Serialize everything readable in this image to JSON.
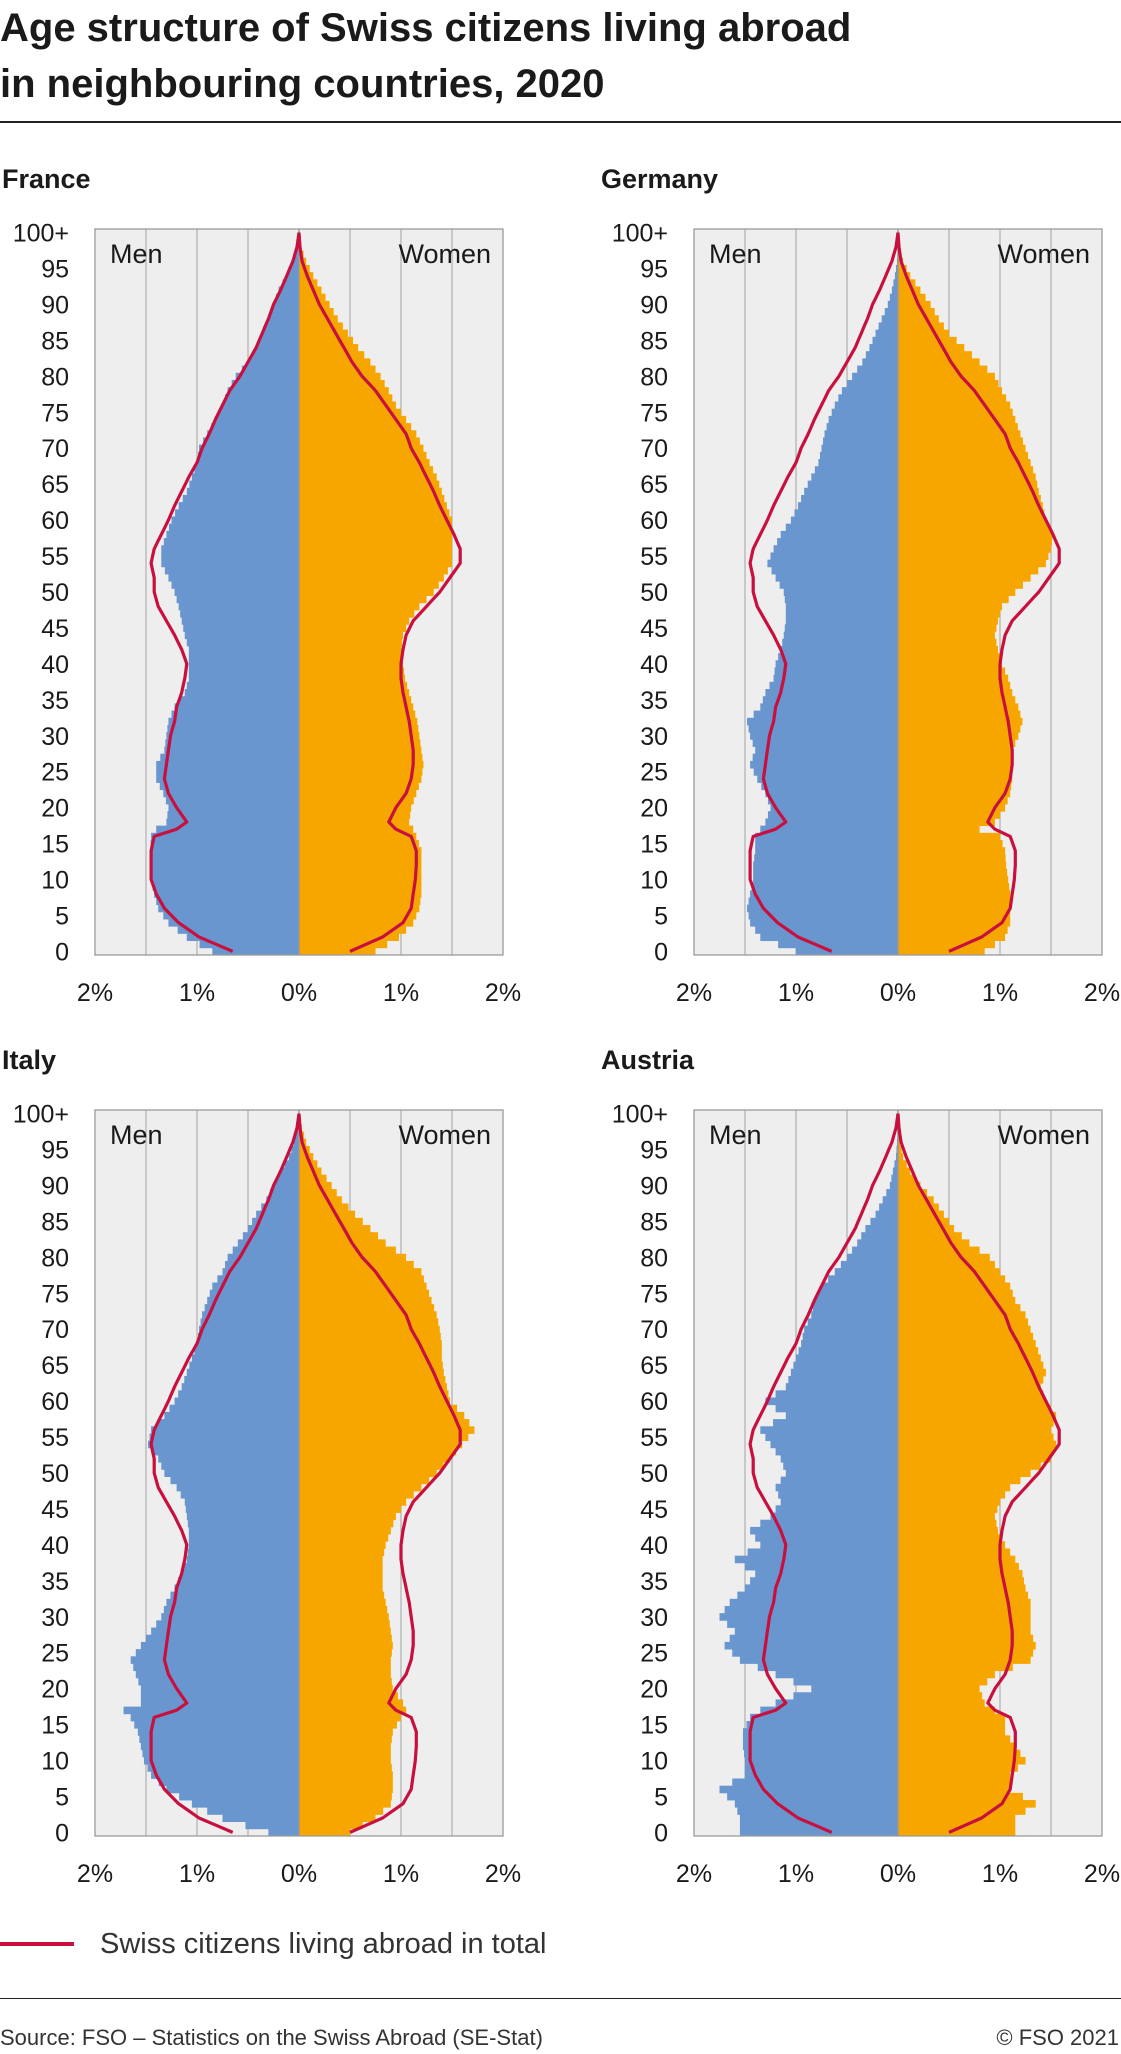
{
  "title": {
    "line1": "Age structure of Swiss citizens living abroad",
    "line2": "in neighbouring countries, 2020"
  },
  "colors": {
    "men": "#6a96cf",
    "women": "#f7a600",
    "total": "#c8103e",
    "plot_bg": "#eeeeee",
    "grid": "#b4b4b4"
  },
  "labels": {
    "men": "Men",
    "women": "Women"
  },
  "legend": {
    "total_label": "Swiss citizens living abroad in total"
  },
  "footer": {
    "source": "Source: FSO – Statistics on the Swiss Abroad (SE-Stat)",
    "copyright": "© FSO 2021"
  },
  "chart_data": [
    {
      "type": "bar",
      "orientation": "horizontal-population-pyramid",
      "panel_title": "France",
      "y_ticks": [
        "0",
        "5",
        "10",
        "15",
        "20",
        "25",
        "30",
        "35",
        "40",
        "45",
        "50",
        "55",
        "60",
        "65",
        "70",
        "75",
        "80",
        "85",
        "90",
        "95",
        "100+"
      ],
      "x_ticks": [
        "2%",
        "1%",
        "0%",
        "1%",
        "2%"
      ],
      "xlim_percent": [
        -2,
        2
      ],
      "age_keypoints": [
        0,
        2,
        4,
        6,
        8,
        10,
        12,
        14,
        16,
        17,
        18,
        20,
        22,
        24,
        26,
        28,
        30,
        32,
        34,
        36,
        38,
        40,
        42,
        44,
        46,
        48,
        50,
        52,
        54,
        56,
        58,
        60,
        62,
        64,
        66,
        68,
        70,
        72,
        74,
        76,
        78,
        80,
        82,
        84,
        86,
        88,
        90,
        92,
        94,
        96,
        98,
        100
      ],
      "men_percent": [
        0.85,
        1.1,
        1.28,
        1.38,
        1.42,
        1.45,
        1.46,
        1.46,
        1.45,
        1.4,
        1.3,
        1.28,
        1.33,
        1.4,
        1.4,
        1.32,
        1.3,
        1.28,
        1.22,
        1.12,
        1.08,
        1.08,
        1.08,
        1.12,
        1.15,
        1.18,
        1.22,
        1.28,
        1.35,
        1.35,
        1.3,
        1.25,
        1.18,
        1.1,
        1.05,
        1.0,
        0.98,
        0.9,
        0.82,
        0.75,
        0.7,
        0.62,
        0.5,
        0.42,
        0.36,
        0.3,
        0.25,
        0.2,
        0.12,
        0.06,
        0.02,
        0.0
      ],
      "women_percent": [
        0.75,
        0.98,
        1.12,
        1.18,
        1.2,
        1.2,
        1.2,
        1.2,
        1.15,
        1.12,
        1.08,
        1.1,
        1.15,
        1.2,
        1.22,
        1.2,
        1.18,
        1.16,
        1.12,
        1.08,
        1.04,
        1.02,
        1.0,
        1.02,
        1.08,
        1.18,
        1.32,
        1.42,
        1.5,
        1.5,
        1.5,
        1.5,
        1.45,
        1.4,
        1.35,
        1.28,
        1.22,
        1.15,
        1.05,
        0.95,
        0.88,
        0.8,
        0.7,
        0.58,
        0.48,
        0.38,
        0.3,
        0.22,
        0.14,
        0.07,
        0.02,
        0.0
      ],
      "total_men_percent": [
        0.65,
        0.98,
        1.18,
        1.32,
        1.4,
        1.45,
        1.45,
        1.45,
        1.42,
        1.2,
        1.1,
        1.2,
        1.28,
        1.32,
        1.3,
        1.28,
        1.26,
        1.22,
        1.2,
        1.15,
        1.12,
        1.1,
        1.15,
        1.22,
        1.3,
        1.38,
        1.42,
        1.42,
        1.45,
        1.42,
        1.35,
        1.28,
        1.22,
        1.15,
        1.08,
        1.0,
        0.95,
        0.88,
        0.82,
        0.75,
        0.68,
        0.58,
        0.5,
        0.42,
        0.36,
        0.3,
        0.25,
        0.18,
        0.12,
        0.06,
        0.02,
        0.0
      ],
      "total_women_percent": [
        0.5,
        0.82,
        1.02,
        1.1,
        1.12,
        1.14,
        1.15,
        1.15,
        1.1,
        0.95,
        0.88,
        0.95,
        1.05,
        1.1,
        1.12,
        1.12,
        1.1,
        1.08,
        1.05,
        1.02,
        1.0,
        1.0,
        1.02,
        1.05,
        1.12,
        1.25,
        1.38,
        1.48,
        1.58,
        1.58,
        1.52,
        1.45,
        1.38,
        1.32,
        1.25,
        1.18,
        1.1,
        1.05,
        0.95,
        0.85,
        0.75,
        0.62,
        0.52,
        0.44,
        0.36,
        0.28,
        0.2,
        0.14,
        0.08,
        0.03,
        0.01,
        0.0
      ]
    },
    {
      "type": "bar",
      "orientation": "horizontal-population-pyramid",
      "panel_title": "Germany",
      "y_ticks": [
        "0",
        "5",
        "10",
        "15",
        "20",
        "25",
        "30",
        "35",
        "40",
        "45",
        "50",
        "55",
        "60",
        "65",
        "70",
        "75",
        "80",
        "85",
        "90",
        "95",
        "100+"
      ],
      "x_ticks": [
        "2%",
        "1%",
        "0%",
        "1%",
        "2%"
      ],
      "xlim_percent": [
        -2,
        2
      ],
      "age_keypoints": [
        0,
        2,
        4,
        6,
        8,
        10,
        12,
        14,
        16,
        17,
        18,
        20,
        22,
        24,
        26,
        28,
        30,
        32,
        34,
        36,
        38,
        40,
        42,
        44,
        46,
        48,
        50,
        52,
        54,
        56,
        58,
        60,
        62,
        64,
        66,
        68,
        70,
        72,
        74,
        76,
        78,
        80,
        82,
        84,
        86,
        88,
        90,
        92,
        94,
        96,
        98,
        100
      ],
      "men_percent": [
        1.0,
        1.35,
        1.45,
        1.48,
        1.45,
        1.42,
        1.42,
        1.4,
        1.4,
        1.35,
        1.3,
        1.25,
        1.3,
        1.38,
        1.45,
        1.4,
        1.45,
        1.48,
        1.35,
        1.3,
        1.22,
        1.2,
        1.15,
        1.12,
        1.1,
        1.1,
        1.12,
        1.2,
        1.28,
        1.22,
        1.15,
        1.05,
        0.98,
        0.92,
        0.85,
        0.78,
        0.75,
        0.72,
        0.68,
        0.62,
        0.55,
        0.45,
        0.35,
        0.28,
        0.22,
        0.16,
        0.1,
        0.06,
        0.03,
        0.01,
        0.0,
        0.0
      ],
      "women_percent": [
        0.85,
        1.05,
        1.1,
        1.1,
        1.1,
        1.08,
        1.06,
        1.05,
        1.0,
        0.8,
        0.95,
        1.05,
        1.1,
        1.12,
        1.12,
        1.12,
        1.18,
        1.22,
        1.18,
        1.12,
        1.08,
        1.02,
        0.98,
        0.95,
        0.98,
        1.02,
        1.15,
        1.3,
        1.45,
        1.5,
        1.52,
        1.45,
        1.42,
        1.38,
        1.35,
        1.3,
        1.25,
        1.2,
        1.15,
        1.1,
        1.02,
        0.95,
        0.8,
        0.65,
        0.5,
        0.4,
        0.32,
        0.22,
        0.12,
        0.05,
        0.01,
        0.0
      ],
      "total_men_percent": [
        0.65,
        0.98,
        1.18,
        1.32,
        1.4,
        1.45,
        1.45,
        1.45,
        1.42,
        1.2,
        1.1,
        1.2,
        1.28,
        1.32,
        1.3,
        1.28,
        1.26,
        1.22,
        1.2,
        1.15,
        1.12,
        1.1,
        1.15,
        1.22,
        1.3,
        1.38,
        1.42,
        1.42,
        1.45,
        1.42,
        1.35,
        1.28,
        1.22,
        1.15,
        1.08,
        1.0,
        0.95,
        0.88,
        0.82,
        0.75,
        0.68,
        0.58,
        0.5,
        0.42,
        0.36,
        0.3,
        0.25,
        0.18,
        0.12,
        0.06,
        0.02,
        0.0
      ],
      "total_women_percent": [
        0.5,
        0.82,
        1.02,
        1.1,
        1.12,
        1.14,
        1.15,
        1.15,
        1.1,
        0.95,
        0.88,
        0.95,
        1.05,
        1.1,
        1.12,
        1.12,
        1.1,
        1.08,
        1.05,
        1.02,
        1.0,
        1.0,
        1.02,
        1.05,
        1.12,
        1.25,
        1.38,
        1.48,
        1.58,
        1.58,
        1.52,
        1.45,
        1.38,
        1.32,
        1.25,
        1.18,
        1.1,
        1.05,
        0.95,
        0.85,
        0.75,
        0.62,
        0.52,
        0.44,
        0.36,
        0.28,
        0.2,
        0.14,
        0.08,
        0.03,
        0.01,
        0.0
      ]
    },
    {
      "type": "bar",
      "orientation": "horizontal-population-pyramid",
      "panel_title": "Italy",
      "y_ticks": [
        "0",
        "5",
        "10",
        "15",
        "20",
        "25",
        "30",
        "35",
        "40",
        "45",
        "50",
        "55",
        "60",
        "65",
        "70",
        "75",
        "80",
        "85",
        "90",
        "95",
        "100+"
      ],
      "x_ticks": [
        "2%",
        "1%",
        "0%",
        "1%",
        "2%"
      ],
      "xlim_percent": [
        -2,
        2
      ],
      "age_keypoints": [
        0,
        2,
        4,
        6,
        8,
        10,
        12,
        14,
        16,
        17,
        18,
        20,
        22,
        24,
        26,
        28,
        30,
        32,
        34,
        36,
        38,
        40,
        42,
        44,
        46,
        48,
        50,
        52,
        54,
        56,
        58,
        60,
        62,
        64,
        66,
        68,
        70,
        72,
        74,
        76,
        78,
        80,
        82,
        84,
        86,
        88,
        90,
        92,
        94,
        96,
        98,
        100
      ],
      "men_percent": [
        0.3,
        0.75,
        1.05,
        1.3,
        1.45,
        1.52,
        1.55,
        1.58,
        1.65,
        1.72,
        1.55,
        1.55,
        1.6,
        1.65,
        1.55,
        1.45,
        1.35,
        1.3,
        1.22,
        1.15,
        1.1,
        1.08,
        1.08,
        1.1,
        1.12,
        1.2,
        1.32,
        1.38,
        1.48,
        1.45,
        1.32,
        1.22,
        1.15,
        1.1,
        1.05,
        1.0,
        0.98,
        0.95,
        0.9,
        0.85,
        0.75,
        0.7,
        0.6,
        0.5,
        0.42,
        0.32,
        0.25,
        0.18,
        0.1,
        0.05,
        0.02,
        0.0
      ],
      "women_percent": [
        0.5,
        0.75,
        0.9,
        0.92,
        0.92,
        0.9,
        0.9,
        0.92,
        1.0,
        1.05,
        1.02,
        0.92,
        0.9,
        0.9,
        0.92,
        0.9,
        0.88,
        0.85,
        0.82,
        0.82,
        0.82,
        0.85,
        0.9,
        0.95,
        1.05,
        1.2,
        1.35,
        1.48,
        1.6,
        1.72,
        1.62,
        1.48,
        1.45,
        1.42,
        1.4,
        1.4,
        1.38,
        1.35,
        1.3,
        1.25,
        1.2,
        1.05,
        0.85,
        0.7,
        0.55,
        0.42,
        0.32,
        0.22,
        0.14,
        0.07,
        0.03,
        0.0
      ],
      "total_men_percent": [
        0.65,
        0.98,
        1.18,
        1.32,
        1.4,
        1.45,
        1.45,
        1.45,
        1.42,
        1.2,
        1.1,
        1.2,
        1.28,
        1.32,
        1.3,
        1.28,
        1.26,
        1.22,
        1.2,
        1.15,
        1.12,
        1.1,
        1.15,
        1.22,
        1.3,
        1.38,
        1.42,
        1.42,
        1.45,
        1.42,
        1.35,
        1.28,
        1.22,
        1.15,
        1.08,
        1.0,
        0.95,
        0.88,
        0.82,
        0.75,
        0.68,
        0.58,
        0.5,
        0.42,
        0.36,
        0.3,
        0.25,
        0.18,
        0.12,
        0.06,
        0.02,
        0.0
      ],
      "total_women_percent": [
        0.5,
        0.82,
        1.02,
        1.1,
        1.12,
        1.14,
        1.15,
        1.15,
        1.1,
        0.95,
        0.88,
        0.95,
        1.05,
        1.1,
        1.12,
        1.12,
        1.1,
        1.08,
        1.05,
        1.02,
        1.0,
        1.0,
        1.02,
        1.05,
        1.12,
        1.25,
        1.38,
        1.48,
        1.58,
        1.58,
        1.52,
        1.45,
        1.38,
        1.32,
        1.25,
        1.18,
        1.1,
        1.05,
        0.95,
        0.85,
        0.75,
        0.62,
        0.52,
        0.44,
        0.36,
        0.28,
        0.2,
        0.14,
        0.08,
        0.03,
        0.01,
        0.0
      ]
    },
    {
      "type": "bar",
      "orientation": "horizontal-population-pyramid",
      "panel_title": "Austria",
      "y_ticks": [
        "0",
        "5",
        "10",
        "15",
        "20",
        "25",
        "30",
        "35",
        "40",
        "45",
        "50",
        "55",
        "60",
        "65",
        "70",
        "75",
        "80",
        "85",
        "90",
        "95",
        "100+"
      ],
      "x_ticks": [
        "2%",
        "1%",
        "0%",
        "1%",
        "2%"
      ],
      "xlim_percent": [
        -2,
        2
      ],
      "age_keypoints": [
        0,
        2,
        4,
        6,
        8,
        10,
        12,
        14,
        16,
        17,
        18,
        20,
        22,
        24,
        26,
        28,
        30,
        32,
        34,
        36,
        38,
        40,
        42,
        44,
        46,
        48,
        50,
        52,
        54,
        56,
        58,
        60,
        62,
        64,
        66,
        68,
        70,
        72,
        74,
        76,
        78,
        80,
        82,
        84,
        86,
        88,
        90,
        92,
        94,
        96,
        98,
        100
      ],
      "men_percent": [
        1.55,
        1.55,
        1.6,
        1.75,
        1.5,
        1.5,
        1.52,
        1.52,
        1.45,
        1.35,
        1.2,
        0.85,
        1.2,
        1.55,
        1.7,
        1.6,
        1.75,
        1.65,
        1.5,
        1.4,
        1.6,
        1.35,
        1.45,
        1.25,
        1.15,
        1.2,
        1.1,
        1.15,
        1.25,
        1.35,
        1.1,
        1.3,
        1.1,
        1.05,
        1.0,
        0.95,
        0.92,
        0.85,
        0.82,
        0.75,
        0.62,
        0.5,
        0.4,
        0.32,
        0.22,
        0.15,
        0.08,
        0.05,
        0.02,
        0.01,
        0.0,
        0.0
      ],
      "women_percent": [
        1.15,
        1.15,
        1.35,
        1.1,
        1.1,
        1.25,
        1.15,
        1.05,
        1.05,
        0.95,
        0.85,
        0.8,
        0.95,
        1.3,
        1.35,
        1.3,
        1.3,
        1.3,
        1.25,
        1.22,
        1.15,
        1.05,
        0.98,
        0.95,
        1.0,
        1.1,
        1.3,
        1.5,
        1.55,
        1.5,
        1.55,
        1.45,
        1.4,
        1.45,
        1.4,
        1.35,
        1.3,
        1.25,
        1.15,
        1.1,
        1.0,
        0.9,
        0.7,
        0.55,
        0.45,
        0.35,
        0.22,
        0.12,
        0.05,
        0.02,
        0.01,
        0.0
      ],
      "total_men_percent": [
        0.65,
        0.98,
        1.18,
        1.32,
        1.4,
        1.45,
        1.45,
        1.45,
        1.42,
        1.2,
        1.1,
        1.2,
        1.28,
        1.32,
        1.3,
        1.28,
        1.26,
        1.22,
        1.2,
        1.15,
        1.12,
        1.1,
        1.15,
        1.22,
        1.3,
        1.38,
        1.42,
        1.42,
        1.45,
        1.42,
        1.35,
        1.28,
        1.22,
        1.15,
        1.08,
        1.0,
        0.95,
        0.88,
        0.82,
        0.75,
        0.68,
        0.58,
        0.5,
        0.42,
        0.36,
        0.3,
        0.25,
        0.18,
        0.12,
        0.06,
        0.02,
        0.0
      ],
      "total_women_percent": [
        0.5,
        0.82,
        1.02,
        1.1,
        1.12,
        1.14,
        1.15,
        1.15,
        1.1,
        0.95,
        0.88,
        0.95,
        1.05,
        1.1,
        1.12,
        1.12,
        1.1,
        1.08,
        1.05,
        1.02,
        1.0,
        1.0,
        1.02,
        1.05,
        1.12,
        1.25,
        1.38,
        1.48,
        1.58,
        1.58,
        1.52,
        1.45,
        1.38,
        1.32,
        1.25,
        1.18,
        1.1,
        1.05,
        0.95,
        0.85,
        0.75,
        0.62,
        0.52,
        0.44,
        0.36,
        0.28,
        0.2,
        0.14,
        0.08,
        0.03,
        0.01,
        0.0
      ]
    }
  ]
}
